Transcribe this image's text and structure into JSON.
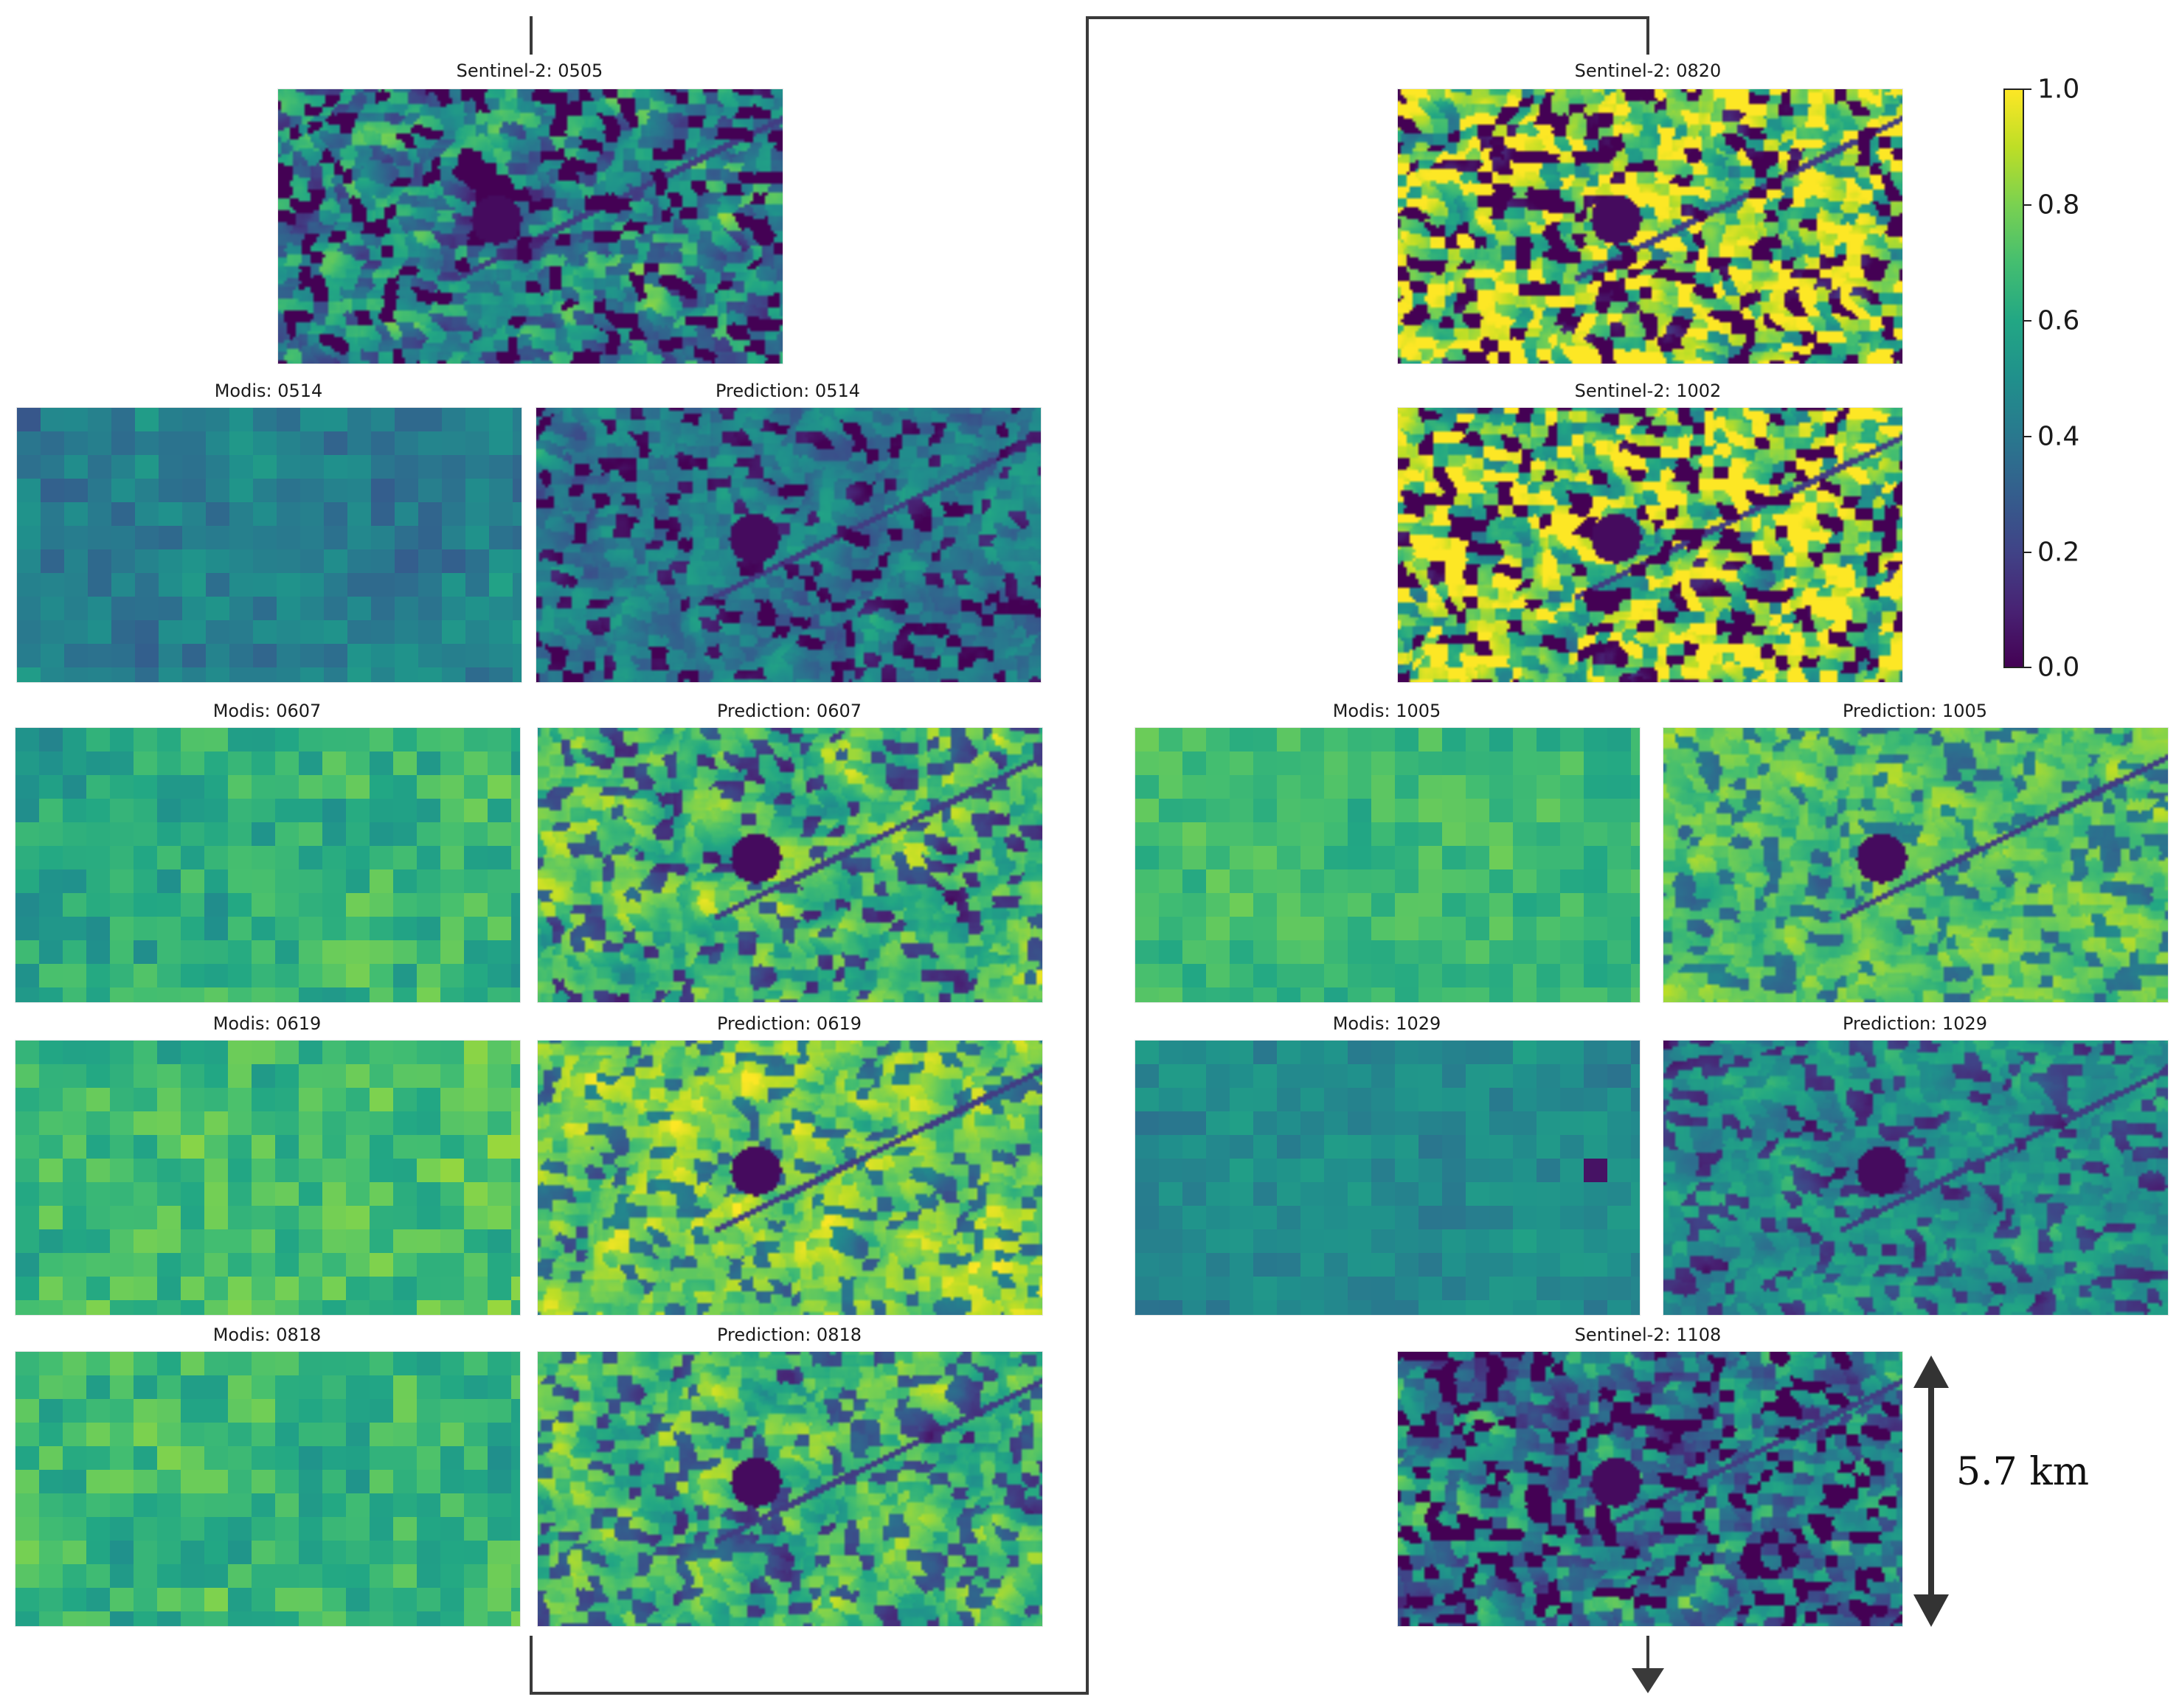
{
  "panels": [
    {
      "id": "s2-0505",
      "title": "Sentinel-2: 0505",
      "kind": "sentinel",
      "mean": 0.38,
      "contrast": 0.3
    },
    {
      "id": "modis-0514",
      "title": "Modis: 0514",
      "kind": "modis",
      "mean": 0.45,
      "contrast": 0.1
    },
    {
      "id": "pred-0514",
      "title": "Prediction: 0514",
      "kind": "prediction",
      "mean": 0.4,
      "contrast": 0.22
    },
    {
      "id": "modis-0607",
      "title": "Modis: 0607",
      "kind": "modis",
      "mean": 0.66,
      "contrast": 0.12
    },
    {
      "id": "pred-0607",
      "title": "Prediction: 0607",
      "kind": "prediction",
      "mean": 0.68,
      "contrast": 0.28
    },
    {
      "id": "modis-0619",
      "title": "Modis: 0619",
      "kind": "modis",
      "mean": 0.74,
      "contrast": 0.12
    },
    {
      "id": "pred-0619",
      "title": "Prediction: 0619",
      "kind": "prediction",
      "mean": 0.78,
      "contrast": 0.24
    },
    {
      "id": "modis-0818",
      "title": "Modis: 0818",
      "kind": "modis",
      "mean": 0.68,
      "contrast": 0.12
    },
    {
      "id": "pred-0818",
      "title": "Prediction: 0818",
      "kind": "prediction",
      "mean": 0.68,
      "contrast": 0.26
    },
    {
      "id": "s2-0820",
      "title": "Sentinel-2: 0820",
      "kind": "sentinel",
      "mean": 0.78,
      "contrast": 0.4
    },
    {
      "id": "s2-1002",
      "title": "Sentinel-2: 1002",
      "kind": "sentinel",
      "mean": 0.76,
      "contrast": 0.42
    },
    {
      "id": "modis-1005",
      "title": "Modis: 1005",
      "kind": "modis",
      "mean": 0.7,
      "contrast": 0.08
    },
    {
      "id": "pred-1005",
      "title": "Prediction: 1005",
      "kind": "prediction",
      "mean": 0.72,
      "contrast": 0.2
    },
    {
      "id": "modis-1029",
      "title": "Modis: 1029",
      "kind": "modis",
      "mean": 0.48,
      "contrast": 0.07
    },
    {
      "id": "pred-1029",
      "title": "Prediction: 1029",
      "kind": "prediction",
      "mean": 0.5,
      "contrast": 0.2
    },
    {
      "id": "s2-1108",
      "title": "Sentinel-2: 1108",
      "kind": "sentinel",
      "mean": 0.4,
      "contrast": 0.28
    }
  ],
  "colorbar": {
    "colormap": "viridis",
    "range": [
      0.0,
      1.0
    ],
    "ticks": [
      "1.0",
      "0.8",
      "0.6",
      "0.4",
      "0.2",
      "0.0"
    ]
  },
  "scale_bar": {
    "label": "5.7 km"
  },
  "colors": {
    "flow_line": "#3a3a3a"
  }
}
